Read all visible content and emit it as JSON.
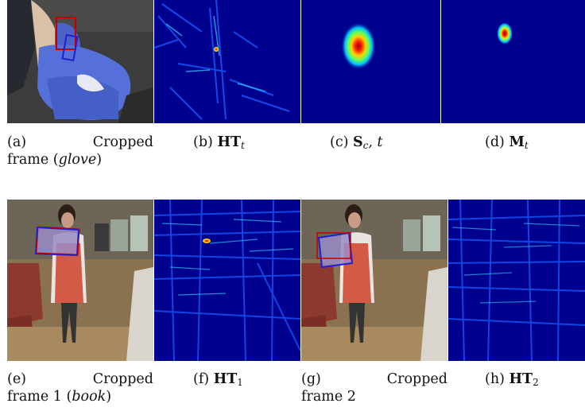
{
  "figure": {
    "row1": {
      "a": {
        "letter": "(a)",
        "word": "Cropped",
        "line2_prefix": "frame (",
        "line2_italic": "glove",
        "line2_suffix": ")"
      },
      "b": {
        "letter": "(b)",
        "bold": "HT",
        "sub": "t"
      },
      "c": {
        "letter": "(c)",
        "bold": "S",
        "sub": "c",
        "rest": ", t"
      },
      "d": {
        "letter": "(d)",
        "bold": "M",
        "sub": "t"
      }
    },
    "row2": {
      "e": {
        "letter": "(e)",
        "word": "Cropped",
        "line2_prefix": "frame 1 (",
        "line2_italic": "book",
        "line2_suffix": ")"
      },
      "f": {
        "letter": "(f)",
        "bold": "HT",
        "sub": "1"
      },
      "g": {
        "letter": "(g)",
        "word": "Cropped",
        "line2": "frame 2"
      },
      "h": {
        "letter": "(h)",
        "bold": "HT",
        "sub": "2"
      }
    }
  },
  "colors": {
    "heatmap_bg": "#00008f",
    "box_red": "#c00000",
    "box_blue": "#1f1fd0"
  }
}
